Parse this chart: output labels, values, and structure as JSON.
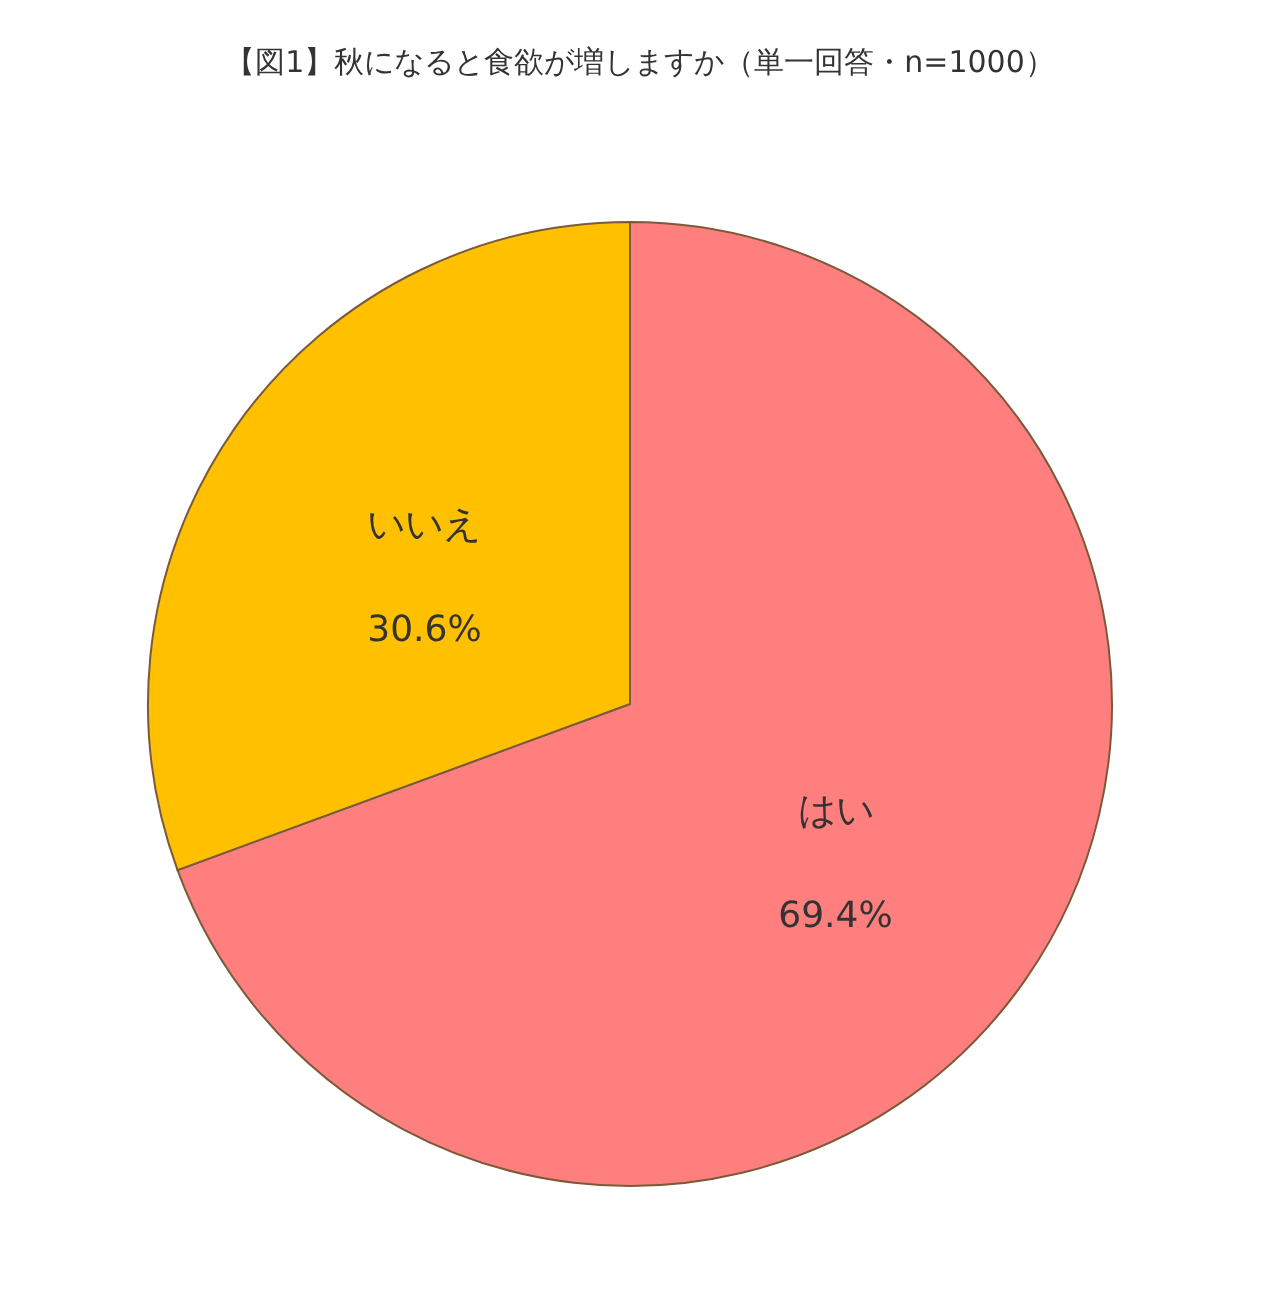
{
  "chart_data": {
    "type": "pie",
    "title": "【図1】秋になると食欲が増しますか（単一回答・n=1000）",
    "categories": [
      "はい",
      "いいえ"
    ],
    "values": [
      69.4,
      30.6
    ],
    "colors": [
      "#ff7f7f",
      "#ffc000"
    ],
    "value_labels": [
      "69.4%",
      "30.6%"
    ]
  }
}
